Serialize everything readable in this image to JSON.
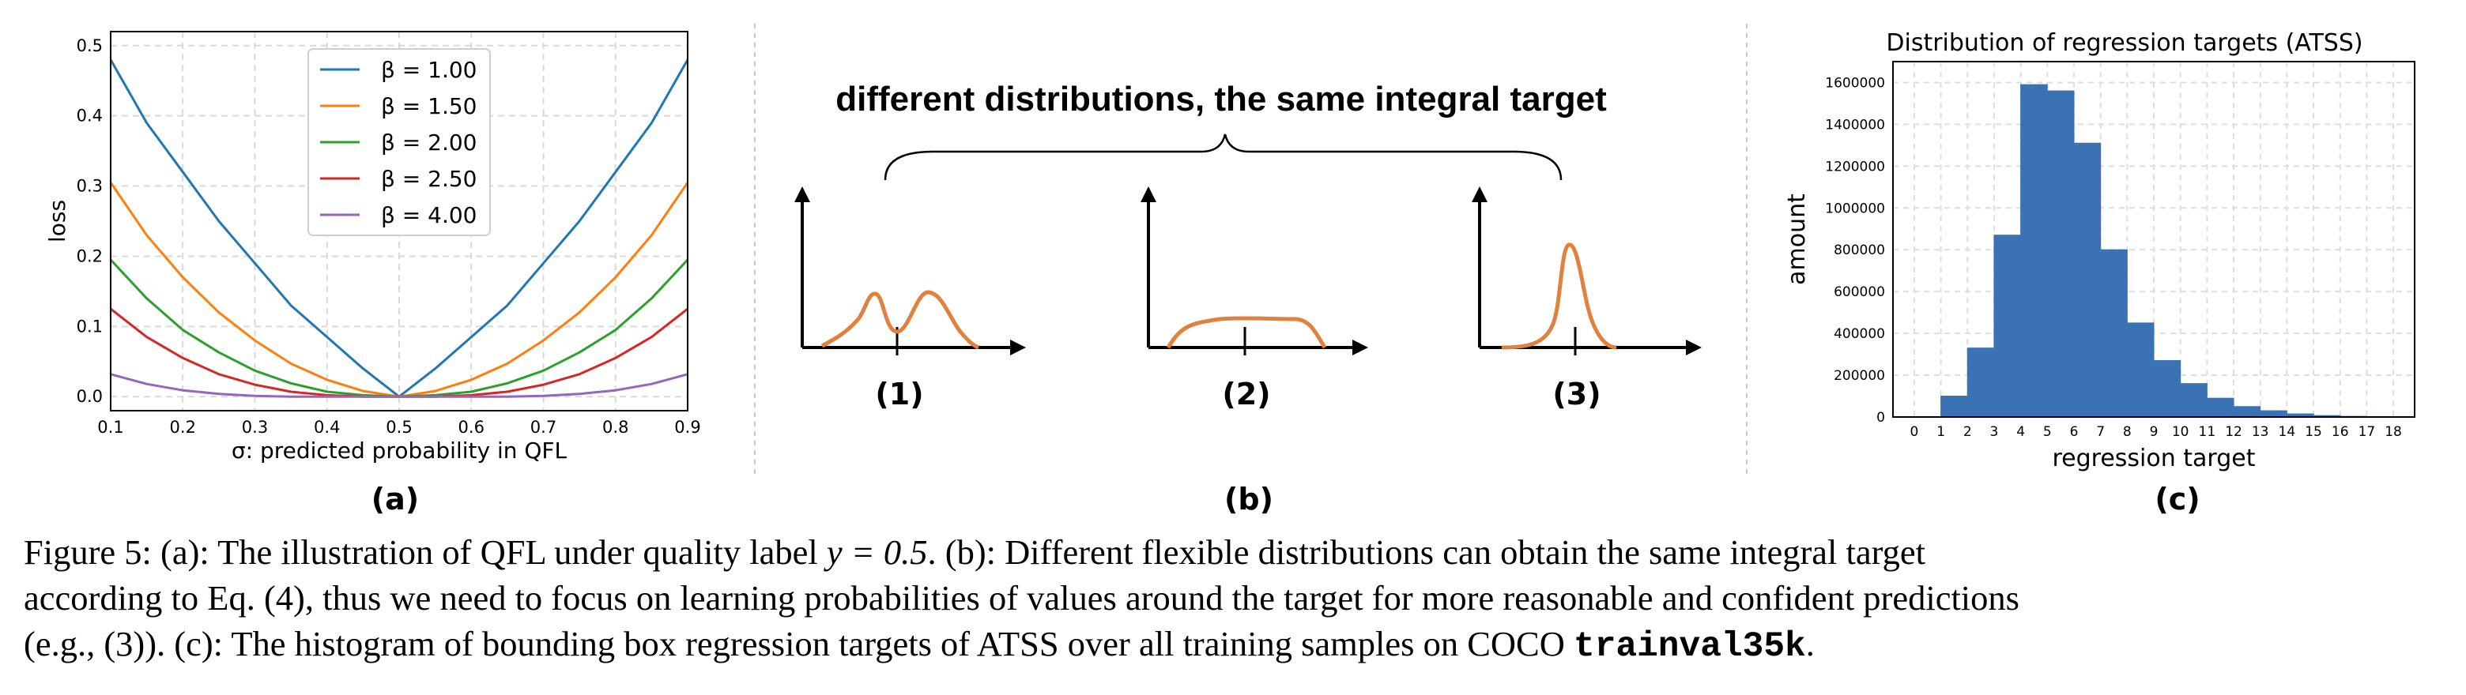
{
  "panel_a": {
    "label": "(a)",
    "xlabel": "σ: predicted probability in QFL",
    "ylabel": "loss",
    "xticks": [
      "0.1",
      "0.2",
      "0.3",
      "0.4",
      "0.5",
      "0.6",
      "0.7",
      "0.8",
      "0.9"
    ],
    "yticks": [
      "0.0",
      "0.1",
      "0.2",
      "0.3",
      "0.4",
      "0.5"
    ],
    "legend": [
      "β = 1.00",
      "β = 1.50",
      "β = 2.00",
      "β = 2.50",
      "β = 4.00"
    ],
    "colors": [
      "#1f77b4",
      "#ff7f0e",
      "#2ca02c",
      "#d62728",
      "#9467bd"
    ]
  },
  "panel_b": {
    "label": "(b)",
    "title": "different distributions, the same integral target",
    "sub_labels": [
      "(1)",
      "(2)",
      "(3)"
    ],
    "curve_color": "#e0823d"
  },
  "panel_c": {
    "label": "(c)",
    "title": "Distribution of regression targets (ATSS)",
    "xlabel": "regression target",
    "ylabel": "amount",
    "yticks": [
      "0",
      "200000",
      "400000",
      "600000",
      "800000",
      "1000000",
      "1200000",
      "1400000",
      "1600000"
    ],
    "xticks": [
      "0",
      "1",
      "2",
      "3",
      "4",
      "5",
      "6",
      "7",
      "8",
      "9",
      "10",
      "11",
      "12",
      "13",
      "14",
      "15",
      "16",
      "17",
      "18"
    ],
    "bar_color": "#3a72b4"
  },
  "caption": {
    "line1_a": "Figure 5: (a): The illustration of QFL under quality label ",
    "line1_math": "y = 0.5",
    "line1_b": ". (b): Different flexible distributions can obtain the same integral target",
    "line2": "according to Eq. (4), thus we need to focus on learning probabilities of values around the target for more reasonable and confident predictions",
    "line3_a": "(e.g., (3)). (c): The histogram of bounding box regression targets of ATSS over all training samples on COCO ",
    "line3_code": "trainval35k",
    "line3_b": "."
  },
  "chart_data": [
    {
      "type": "line",
      "title": "",
      "xlabel": "σ: predicted probability in QFL",
      "ylabel": "loss",
      "xlim": [
        0.1,
        0.9
      ],
      "ylim": [
        -0.02,
        0.52
      ],
      "grid": true,
      "legend_position": "top-center",
      "x": [
        0.1,
        0.15,
        0.2,
        0.25,
        0.3,
        0.35,
        0.4,
        0.45,
        0.5,
        0.55,
        0.6,
        0.65,
        0.7,
        0.75,
        0.8,
        0.85,
        0.9
      ],
      "series": [
        {
          "name": "β = 1.00",
          "values": [
            0.48,
            0.39,
            0.32,
            0.25,
            0.19,
            0.13,
            0.085,
            0.04,
            0.0,
            0.04,
            0.085,
            0.13,
            0.19,
            0.25,
            0.32,
            0.39,
            0.48
          ]
        },
        {
          "name": "β = 1.50",
          "values": [
            0.305,
            0.23,
            0.17,
            0.12,
            0.08,
            0.047,
            0.024,
            0.008,
            0.0,
            0.008,
            0.024,
            0.047,
            0.08,
            0.12,
            0.17,
            0.23,
            0.305
          ]
        },
        {
          "name": "β = 2.00",
          "values": [
            0.195,
            0.14,
            0.095,
            0.063,
            0.037,
            0.019,
            0.007,
            0.002,
            0.0,
            0.002,
            0.007,
            0.019,
            0.037,
            0.063,
            0.095,
            0.14,
            0.195
          ]
        },
        {
          "name": "β = 2.50",
          "values": [
            0.125,
            0.085,
            0.055,
            0.032,
            0.017,
            0.007,
            0.002,
            0.0,
            0.0,
            0.0,
            0.002,
            0.007,
            0.017,
            0.032,
            0.055,
            0.085,
            0.125
          ]
        },
        {
          "name": "β = 4.00",
          "values": [
            0.032,
            0.018,
            0.009,
            0.004,
            0.001,
            0.0,
            0.0,
            0.0,
            0.0,
            0.0,
            0.0,
            0.0,
            0.001,
            0.004,
            0.009,
            0.018,
            0.032
          ]
        }
      ]
    },
    {
      "type": "bar",
      "title": "Distribution of regression targets (ATSS)",
      "xlabel": "regression target",
      "ylabel": "amount",
      "ylim": [
        0,
        1700000
      ],
      "grid": true,
      "bins": [
        [
          1,
          2
        ],
        [
          2,
          3
        ],
        [
          3,
          4
        ],
        [
          4,
          5
        ],
        [
          5,
          6
        ],
        [
          6,
          7
        ],
        [
          7,
          8
        ],
        [
          8,
          9
        ],
        [
          9,
          10
        ],
        [
          10,
          11
        ],
        [
          11,
          12
        ],
        [
          12,
          13
        ],
        [
          13,
          14
        ],
        [
          14,
          15
        ],
        [
          15,
          16
        ],
        [
          16,
          17
        ]
      ],
      "values": [
        100000,
        330000,
        870000,
        1590000,
        1560000,
        1310000,
        800000,
        450000,
        270000,
        160000,
        90000,
        50000,
        30000,
        15000,
        7000,
        3000
      ]
    }
  ]
}
